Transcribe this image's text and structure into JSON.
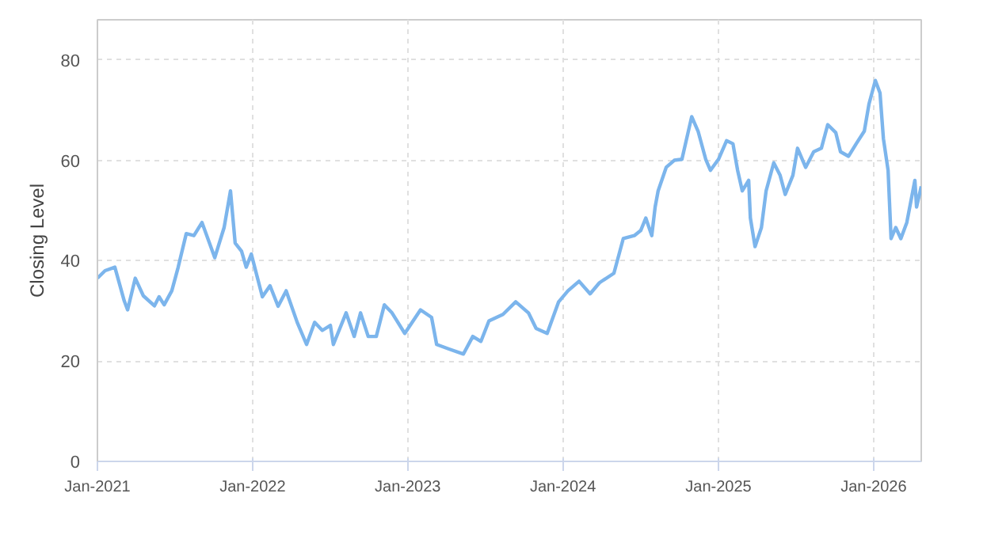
{
  "chart_data": {
    "type": "line",
    "ylabel": "Closing Level",
    "x": [
      "2021-01-01",
      "2021-01-19",
      "2021-02-11",
      "2021-03-05",
      "2021-03-13",
      "2021-03-31",
      "2021-04-19",
      "2021-05-15",
      "2021-05-26",
      "2021-06-07",
      "2021-06-25",
      "2021-07-10",
      "2021-07-29",
      "2021-08-16",
      "2021-09-04",
      "2021-10-04",
      "2021-10-26",
      "2021-11-10",
      "2021-11-21",
      "2021-12-06",
      "2021-12-17",
      "2021-12-29",
      "2022-01-24",
      "2022-02-11",
      "2022-03-02",
      "2022-03-21",
      "2022-04-16",
      "2022-05-08",
      "2022-05-27",
      "2022-06-14",
      "2022-07-03",
      "2022-07-10",
      "2022-08-09",
      "2022-08-28",
      "2022-09-12",
      "2022-09-30",
      "2022-10-19",
      "2022-11-07",
      "2022-11-25",
      "2022-12-25",
      "2023-01-31",
      "2023-02-26",
      "2023-03-10",
      "2023-04-08",
      "2023-05-12",
      "2023-06-03",
      "2023-06-22",
      "2023-07-11",
      "2023-08-13",
      "2023-09-12",
      "2023-10-12",
      "2023-10-30",
      "2023-11-25",
      "2023-12-22",
      "2024-01-13",
      "2024-02-08",
      "2024-03-05",
      "2024-03-27",
      "2024-04-30",
      "2024-05-22",
      "2024-06-17",
      "2024-07-02",
      "2024-07-14",
      "2024-07-28",
      "2024-08-05",
      "2024-08-12",
      "2024-08-31",
      "2024-09-19",
      "2024-10-07",
      "2024-10-30",
      "2024-11-14",
      "2024-12-02",
      "2024-12-13",
      "2025-01-01",
      "2025-01-20",
      "2025-02-04",
      "2025-02-15",
      "2025-02-26",
      "2025-03-13",
      "2025-03-17",
      "2025-03-28",
      "2025-04-12",
      "2025-04-23",
      "2025-05-11",
      "2025-05-26",
      "2025-06-07",
      "2025-06-25",
      "2025-07-06",
      "2025-07-25",
      "2025-08-13",
      "2025-08-31",
      "2025-09-15",
      "2025-10-04",
      "2025-10-15",
      "2025-11-03",
      "2025-11-21",
      "2025-12-10",
      "2025-12-21",
      "2026-01-05",
      "2026-01-16",
      "2026-01-24",
      "2026-02-04",
      "2026-02-11",
      "2026-02-22",
      "2026-03-06",
      "2026-03-20",
      "2026-04-08",
      "2026-04-12",
      "2026-04-23"
    ],
    "series": [
      {
        "color": "#7cb5ec",
        "values": [
          36.5,
          38,
          38.7,
          32,
          30.2,
          36.5,
          33,
          31,
          32.8,
          31.2,
          34,
          38.7,
          45.4,
          45,
          47.6,
          40.6,
          46.6,
          53.9,
          43.5,
          41.9,
          38.7,
          41.3,
          32.8,
          35,
          30.9,
          34,
          27.7,
          23.3,
          27.7,
          26.1,
          27.1,
          23.3,
          29.6,
          24.9,
          29.6,
          24.9,
          24.9,
          31.2,
          29.6,
          25.5,
          30.2,
          28.7,
          23.3,
          22.4,
          21.4,
          24.9,
          23.9,
          28,
          29.3,
          31.8,
          29.6,
          26.5,
          25.5,
          31.8,
          34,
          35.9,
          33.4,
          35.6,
          37.5,
          44.4,
          45,
          46,
          48.5,
          45,
          50.7,
          53.9,
          58.6,
          60,
          60.2,
          68.7,
          65.8,
          60.2,
          58,
          60.2,
          63.9,
          63.3,
          58,
          53.9,
          56,
          48.5,
          42.8,
          46.6,
          53.9,
          59.5,
          57,
          53.2,
          57,
          62.4,
          58.6,
          61.7,
          62.4,
          67.1,
          65.5,
          61.7,
          60.8,
          63.3,
          65.8,
          71.2,
          75.9,
          73.4,
          64.3,
          58,
          44.4,
          46.6,
          44.4,
          47.6,
          56,
          50.7,
          54.8
        ]
      }
    ],
    "xlim": [
      "2021-01-01",
      "2026-04-23"
    ],
    "xticks": [
      {
        "value": "2021-01-01",
        "label": "Jan-2021"
      },
      {
        "value": "2022-01-01",
        "label": "Jan-2022"
      },
      {
        "value": "2023-01-01",
        "label": "Jan-2023"
      },
      {
        "value": "2024-01-01",
        "label": "Jan-2024"
      },
      {
        "value": "2025-01-01",
        "label": "Jan-2025"
      },
      {
        "value": "2026-01-01",
        "label": "Jan-2026"
      }
    ],
    "ylim": [
      0,
      88
    ],
    "yticks": [
      0,
      20,
      40,
      60,
      80
    ],
    "grid": true,
    "marker": "none",
    "line_style": "solid"
  }
}
